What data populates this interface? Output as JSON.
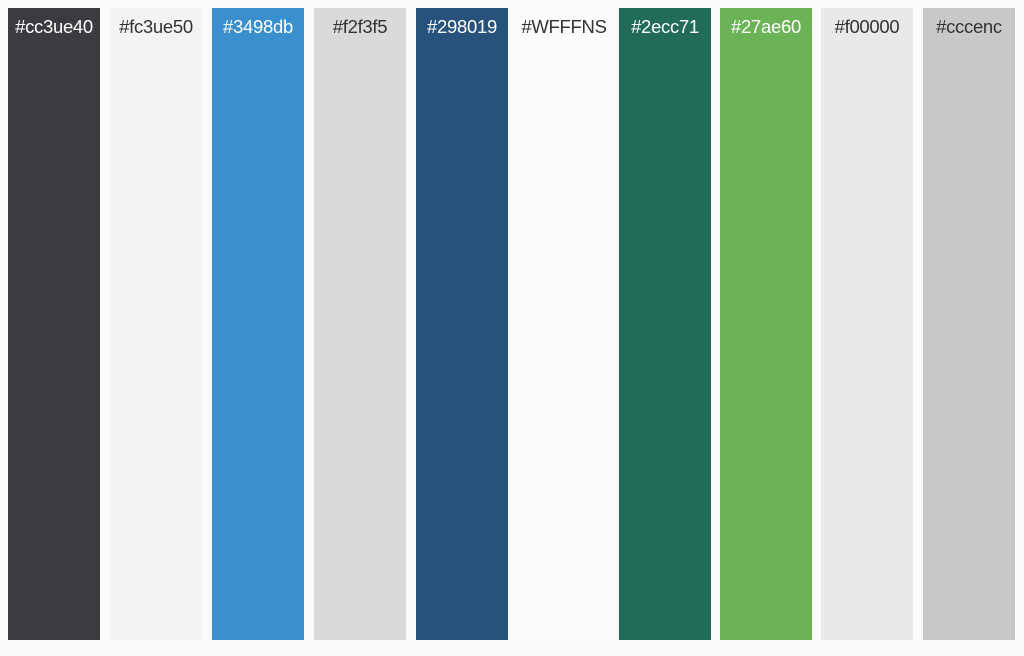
{
  "swatches": [
    {
      "label": "#cc3ue40",
      "fill": "#3a3c40",
      "text_color": "#ffffff"
    },
    {
      "label": "#fc3ue50",
      "fill": "#f5f3f1",
      "text_color": "#333333"
    },
    {
      "label": "#3498db",
      "fill": "#3b8fcc",
      "text_color": "#ffffff"
    },
    {
      "label": "#f2f3f5",
      "fill": "#d9dadb",
      "text_color": "#333333"
    },
    {
      "label": "#298019",
      "fill": "#27527c",
      "text_color": "#ffffff"
    },
    {
      "label": "#WFFFNS",
      "fill": "#fcfcfc",
      "text_color": "#333333"
    },
    {
      "label": "#2ecc71",
      "fill": "#226b59",
      "text_color": "#ffffff"
    },
    {
      "label": "#27ae60",
      "fill": "#6cb256",
      "text_color": "#ffffff"
    },
    {
      "label": "#f00000",
      "fill": "#e9e9e9",
      "text_color": "#333333"
    },
    {
      "label": "#cccenc",
      "fill": "#c8c8c8",
      "text_color": "#333333"
    }
  ]
}
